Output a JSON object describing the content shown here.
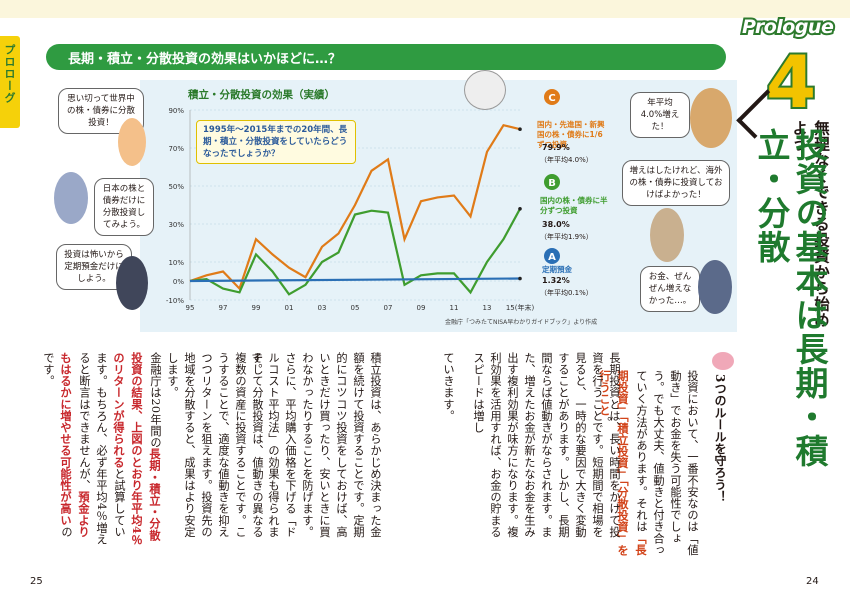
{
  "tab": {
    "label": "プロローグ"
  },
  "header": {
    "prologue": "Prologue",
    "number": "4",
    "subtitle": "無理なくできる投資から始めよう",
    "title": "投資の基本は長期・積立・分散"
  },
  "figure": {
    "heading": "長期・積立・分散投資の効果はいかほどに…？",
    "question": "1995年～2015年までの20年間、長期・積立・分散投資をしていたらどうなったでしょうか？",
    "source": "金融庁「つみたてNISA早わかりガイドブック」より作成"
  },
  "chart_data": {
    "type": "line",
    "title": "積立・分散投資の効果（実績）",
    "x_tick_labels": [
      "95",
      "97",
      "99",
      "01",
      "03",
      "05",
      "07",
      "09",
      "11",
      "13",
      "15(年末)"
    ],
    "y_tick_labels": [
      "90%",
      "70%",
      "50%",
      "30%",
      "10%",
      "0%",
      "-10%"
    ],
    "ylim": [
      -10,
      90
    ],
    "xlim": [
      1995,
      2015
    ],
    "grid": true,
    "series": [
      {
        "name": "C",
        "label": "国内・先進国・新興国の株・債券に1/6ずつ投資",
        "result": "79.9%",
        "annual": "（年平均4.0%）",
        "color": "#e07b18",
        "x": [
          1995,
          1996,
          1997,
          1998,
          1999,
          2000,
          2001,
          2002,
          2003,
          2004,
          2005,
          2006,
          2007,
          2008,
          2009,
          2010,
          2011,
          2012,
          2013,
          2014,
          2015
        ],
        "y": [
          0,
          3,
          5,
          -4,
          22,
          14,
          7,
          2,
          18,
          25,
          40,
          58,
          64,
          22,
          42,
          44,
          45,
          34,
          68,
          82,
          79.9
        ]
      },
      {
        "name": "B",
        "label": "国内の株・債券に半分ずつ投資",
        "result": "38.0%",
        "annual": "（年平均1.9%）",
        "color": "#3f9d2f",
        "x": [
          1995,
          1996,
          1997,
          1998,
          1999,
          2000,
          2001,
          2002,
          2003,
          2004,
          2005,
          2006,
          2007,
          2008,
          2009,
          2010,
          2011,
          2012,
          2013,
          2014,
          2015
        ],
        "y": [
          0,
          1,
          -4,
          -6,
          14,
          5,
          -7,
          -2,
          10,
          15,
          35,
          37,
          36,
          -2,
          3,
          4,
          4,
          -6,
          10,
          22,
          38.0
        ]
      },
      {
        "name": "A",
        "label": "定期預金",
        "result": "1.32%",
        "annual": "（年平均0.1%）",
        "color": "#2a6fb5",
        "x": [
          1995,
          2015
        ],
        "y": [
          0,
          1.32
        ]
      }
    ]
  },
  "speech": {
    "world": "思い切って世界中の株・債券に分散投資！",
    "japan": "日本の株と債券だけに分散投資してみよう。",
    "deposit": "投資は怖いから定期預金だけにしよう。",
    "r1": "年平均4.0%増えた！",
    "r2": "増えはしたけれど、海外の株・債券に投資しておけばよかった！",
    "r3": "お金、ぜんぜん増えなかった…。"
  },
  "right_page": {
    "rule_heading": "3つのルールを守ろう！",
    "col1a": "投資において、一番不安なのは「値動き」でお金を失う可能性でしょう。でも大丈夫、値動きと付き合っていく方法があります。それは",
    "col1b": "「長期投資」「積立投資」「分散投資」を行うこと",
    "col1c": "。",
    "col2": "長期投資とは、長い時間をかけて投資を行うことです。短期間で相場を見ると、一時的な要因で大きく変動することがあります。しかし、長期間ならば値動きがならされます。また、増えたお金が新たなお金を生み出す複利効果が味方になります。複利効果を活用すれば、お金の貯まるスピードは増し"
  },
  "left_page": {
    "col1": "ていきます。",
    "col2": "積立投資は、あらかじめ決まった金額を続けて投資することです。定期的にコツコツ投資をしておけば、高いときだけ買ったり、安いときに買わなかったりすることを防げます。さらに、平均購入価格を下げる「ドルコスト平均法」の効果も得られます。",
    "col3": "そして分散投資は、値動きの異なる複数の資産に投資することです。こうすることで、適度な値動きを抑えつつリターンを狙えます。投資先の地域を分散すると、成果はより安定します。",
    "col4a": "金融庁は20年間の",
    "col4b": "長期・積立・分散投資の結果、上図のとおり年平均4％のリターンが得られる",
    "col4c": "と試算しています。もちろん、必ず年平均4％増えると断言はできませんが、",
    "col4d": "預金よりもはるかに増やせる可能性が高い",
    "col4e": "のです。"
  },
  "pages": {
    "left": "25",
    "right": "24"
  }
}
